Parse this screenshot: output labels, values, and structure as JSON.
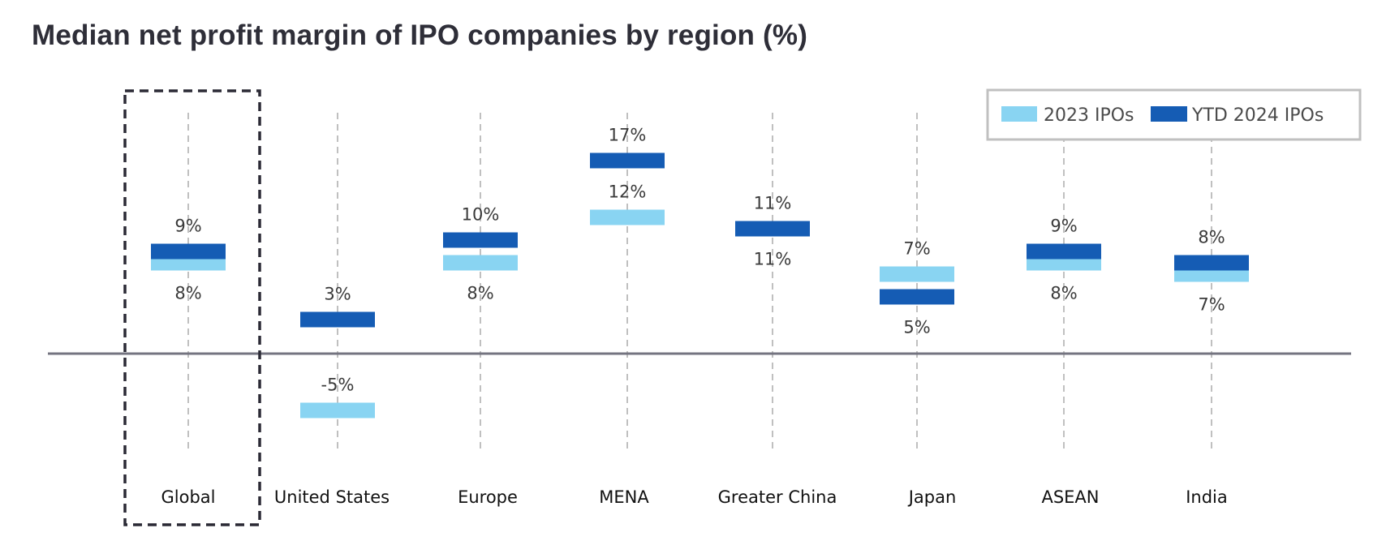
{
  "chart_data": {
    "type": "dot-range",
    "title": "Median net profit margin of IPO companies by region (%)",
    "xlabel": "",
    "ylabel": "",
    "ylim": [
      -8,
      21
    ],
    "grid": false,
    "highlighted_category": "Global",
    "categories": [
      "Global",
      "United States",
      "Europe",
      "MENA",
      "Greater China",
      "Japan",
      "ASEAN",
      "India"
    ],
    "series": [
      {
        "name": "2023 IPOs",
        "color": "#89d4f2",
        "values": [
          8,
          -5,
          8,
          12,
          11,
          7,
          8,
          7
        ],
        "labels": [
          "8%",
          "-5%",
          "8%",
          "12%",
          "11%",
          "7%",
          "8%",
          "7%"
        ],
        "label_placement": [
          "below",
          "above",
          "below",
          "above",
          "below",
          "above",
          "below",
          "below"
        ]
      },
      {
        "name": "YTD 2024 IPOs",
        "color": "#155cb4",
        "values": [
          9,
          3,
          10,
          17,
          11,
          5,
          9,
          8
        ],
        "labels": [
          "9%",
          "3%",
          "10%",
          "17%",
          "11%",
          "5%",
          "9%",
          "8%"
        ],
        "label_placement": [
          "above",
          "above",
          "above",
          "above",
          "above",
          "below",
          "above",
          "above"
        ]
      }
    ],
    "legend": {
      "position": "top-right",
      "entries": [
        "2023 IPOs",
        "YTD 2024 IPOs"
      ]
    }
  },
  "colors": {
    "baseline": "#747480",
    "gridline": "#c0c0c0",
    "highlight_box": "#2b2a35",
    "legend_border": "#c0c0c0"
  }
}
